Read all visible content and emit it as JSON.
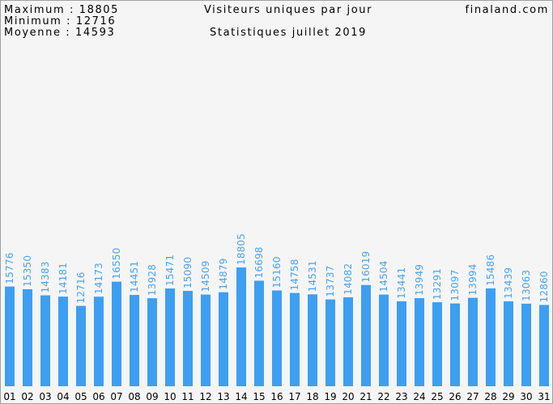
{
  "chart_data": {
    "type": "bar",
    "title": "Visiteurs uniques par jour",
    "subtitle": "Statistiques juillet 2019",
    "site": "finaland.com",
    "stats": [
      "Maximum : 18805",
      "Minimum : 12716",
      "Moyenne : 14593"
    ],
    "categories": [
      "01",
      "02",
      "03",
      "04",
      "05",
      "06",
      "07",
      "08",
      "09",
      "10",
      "11",
      "12",
      "13",
      "14",
      "15",
      "16",
      "17",
      "18",
      "19",
      "20",
      "21",
      "22",
      "23",
      "24",
      "25",
      "26",
      "27",
      "28",
      "29",
      "30",
      "31"
    ],
    "values": [
      15776,
      15350,
      14383,
      14181,
      12716,
      14173,
      16550,
      14451,
      13928,
      15471,
      15090,
      14509,
      14879,
      18805,
      16698,
      15160,
      14758,
      14531,
      13737,
      14082,
      16019,
      14504,
      13441,
      13949,
      13291,
      13097,
      13994,
      15486,
      13439,
      13063,
      12860
    ],
    "color": "#3d9ff2"
  }
}
